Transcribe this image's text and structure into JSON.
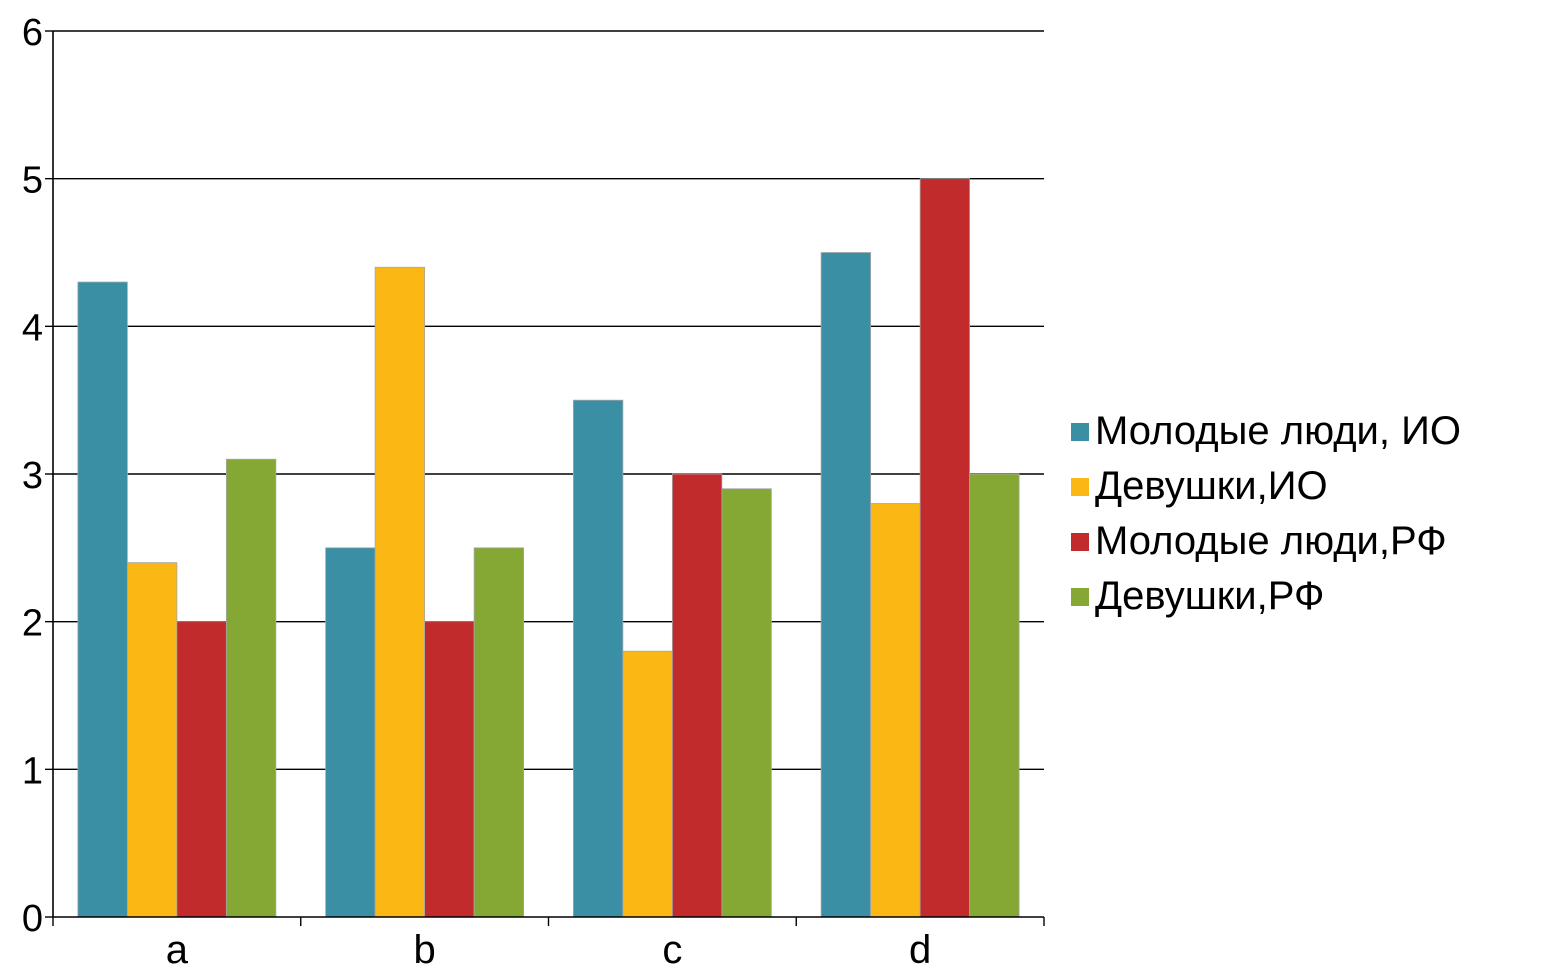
{
  "chart_data": {
    "type": "bar",
    "title": "",
    "xlabel": "",
    "ylabel": "",
    "categories": [
      "a",
      "b",
      "c",
      "d"
    ],
    "ylim": [
      0,
      6
    ],
    "yticks": [
      0,
      1,
      2,
      3,
      4,
      5,
      6
    ],
    "grid": true,
    "legend_position": "right",
    "series": [
      {
        "name": "Молодые люди, ИО",
        "color": "#3a8fa4",
        "values": [
          4.3,
          2.5,
          3.5,
          4.5
        ]
      },
      {
        "name": "Девушки,ИО",
        "color": "#fbb714",
        "values": [
          2.4,
          4.4,
          1.8,
          2.8
        ]
      },
      {
        "name": "Молодые люди,РФ",
        "color": "#c22b2c",
        "values": [
          2.0,
          2.0,
          3.0,
          5.0
        ]
      },
      {
        "name": "Девушки,РФ",
        "color": "#85a835",
        "values": [
          3.1,
          2.5,
          2.9,
          3.0
        ]
      }
    ]
  }
}
